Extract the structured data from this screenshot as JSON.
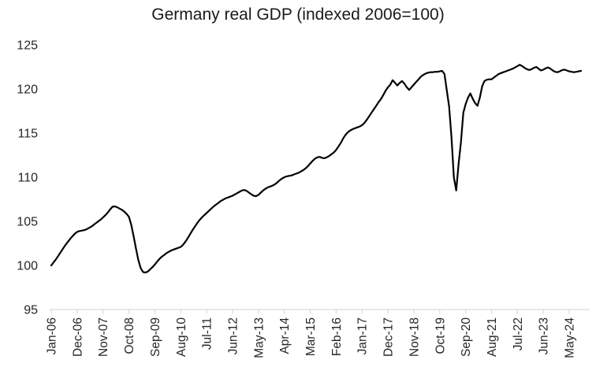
{
  "chart_data": {
    "type": "line",
    "title": "Germany real GDP (indexed 2006=100)",
    "series_name": "Germany real GDP index",
    "x_start": "Jan-2006",
    "x_frequency": "monthly",
    "x_tick_interval_months": 11,
    "x_tick_labels": [
      "Jan-06",
      "Dec-06",
      "Nov-07",
      "Oct-08",
      "Sep-09",
      "Aug-10",
      "Jul-11",
      "Jun-12",
      "May-13",
      "Apr-14",
      "Mar-15",
      "Feb-16",
      "Jan-17",
      "Dec-17",
      "Nov-18",
      "Oct-19",
      "Sep-20",
      "Aug-21",
      "Jul-22",
      "Jun-23",
      "May-24"
    ],
    "y_ticks": [
      95,
      100,
      105,
      110,
      115,
      120,
      125
    ],
    "ylim": [
      95,
      125
    ],
    "grid": false,
    "legend": false,
    "line_color": "#000000",
    "axis_color": "#d9d9d9",
    "text_color": "#262626",
    "values": [
      100.0,
      100.35,
      100.7,
      101.1,
      101.5,
      101.9,
      102.3,
      102.65,
      103.0,
      103.3,
      103.6,
      103.8,
      103.9,
      103.95,
      104.0,
      104.1,
      104.25,
      104.4,
      104.6,
      104.8,
      105.0,
      105.2,
      105.45,
      105.7,
      106.0,
      106.35,
      106.65,
      106.7,
      106.6,
      106.45,
      106.3,
      106.1,
      105.85,
      105.5,
      104.6,
      103.3,
      101.9,
      100.6,
      99.7,
      99.25,
      99.2,
      99.3,
      99.55,
      99.8,
      100.1,
      100.45,
      100.75,
      101.0,
      101.2,
      101.4,
      101.55,
      101.7,
      101.8,
      101.9,
      102.0,
      102.1,
      102.35,
      102.7,
      103.1,
      103.55,
      104.0,
      104.4,
      104.8,
      105.15,
      105.45,
      105.7,
      105.95,
      106.2,
      106.45,
      106.7,
      106.9,
      107.1,
      107.3,
      107.45,
      107.6,
      107.7,
      107.8,
      107.9,
      108.05,
      108.2,
      108.35,
      108.5,
      108.55,
      108.45,
      108.25,
      108.05,
      107.9,
      107.85,
      108.0,
      108.25,
      108.5,
      108.7,
      108.85,
      108.95,
      109.05,
      109.2,
      109.4,
      109.65,
      109.85,
      110.0,
      110.1,
      110.15,
      110.2,
      110.3,
      110.4,
      110.5,
      110.65,
      110.8,
      111.0,
      111.25,
      111.55,
      111.85,
      112.1,
      112.25,
      112.3,
      112.2,
      112.15,
      112.25,
      112.4,
      112.6,
      112.8,
      113.1,
      113.5,
      113.9,
      114.4,
      114.8,
      115.1,
      115.3,
      115.45,
      115.55,
      115.65,
      115.75,
      115.9,
      116.15,
      116.5,
      116.9,
      117.3,
      117.7,
      118.1,
      118.5,
      118.85,
      119.3,
      119.8,
      120.2,
      120.5,
      121.0,
      120.7,
      120.4,
      120.7,
      120.9,
      120.6,
      120.2,
      119.9,
      120.2,
      120.5,
      120.8,
      121.1,
      121.4,
      121.6,
      121.75,
      121.85,
      121.9,
      121.9,
      121.95,
      121.95,
      122.0,
      122.05,
      121.7,
      119.8,
      118.0,
      114.5,
      110.0,
      108.5,
      111.5,
      114.0,
      117.3,
      118.3,
      119.0,
      119.5,
      118.9,
      118.4,
      118.1,
      119.0,
      120.3,
      120.9,
      121.05,
      121.1,
      121.1,
      121.3,
      121.5,
      121.7,
      121.8,
      121.9,
      122.0,
      122.1,
      122.2,
      122.3,
      122.45,
      122.6,
      122.75,
      122.6,
      122.4,
      122.25,
      122.15,
      122.25,
      122.4,
      122.5,
      122.3,
      122.1,
      122.2,
      122.35,
      122.45,
      122.3,
      122.1,
      121.95,
      121.9,
      122.0,
      122.15,
      122.2,
      122.1,
      122.0,
      121.95,
      121.9,
      121.95,
      122.0,
      122.05
    ]
  }
}
